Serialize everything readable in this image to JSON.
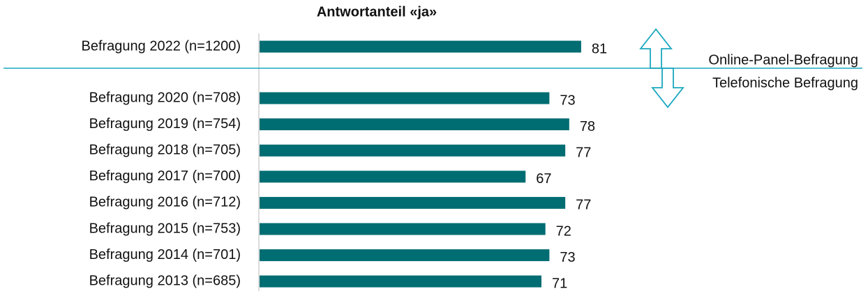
{
  "chart_data": {
    "type": "bar",
    "orientation": "horizontal",
    "title": "Antwortanteil «ja»",
    "categories": [
      "Befragung 2022 (n=1200)",
      "Befragung 2020 (n=708)",
      "Befragung 2019 (n=754)",
      "Befragung 2018 (n=705)",
      "Befragung 2017 (n=700)",
      "Befragung 2016 (n=712)",
      "Befragung 2015 (n=753)",
      "Befragung 2014 (n=701)",
      "Befragung 2013 (n=685)"
    ],
    "values": [
      81,
      73,
      78,
      77,
      67,
      77,
      72,
      73,
      71
    ],
    "color": "#006d72",
    "xlim": [
      0,
      100
    ],
    "annotations": [
      "Online-Panel-Befragung",
      "Telefonische Befragung"
    ],
    "annotation_color": "#1aa7bf"
  }
}
